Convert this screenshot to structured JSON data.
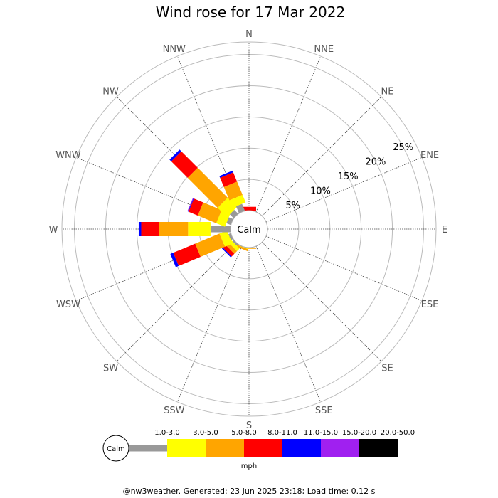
{
  "page": {
    "title": "Wind rose for 17 Mar 2022",
    "footer": "@nw3weather. Generated: 23 Jun 2025 23:18; Load time: 0.12 s"
  },
  "chart_data": {
    "type": "windrose",
    "title": "Wind rose for 17 Mar 2022",
    "calm_label": "Calm",
    "unit": "mph",
    "directions": [
      "N",
      "NNE",
      "NE",
      "ENE",
      "E",
      "ESE",
      "SE",
      "SSE",
      "S",
      "SSW",
      "SW",
      "WSW",
      "W",
      "WNW",
      "NW",
      "NNW"
    ],
    "radial_ticks": [
      {
        "value": 5,
        "label": "5%"
      },
      {
        "value": 10,
        "label": "10%"
      },
      {
        "value": 15,
        "label": "15%"
      },
      {
        "value": 20,
        "label": "20%"
      },
      {
        "value": 25,
        "label": "25%"
      }
    ],
    "rmax": 27,
    "speed_bins": [
      {
        "label": "1.0-3.0",
        "color": "#999999"
      },
      {
        "label": "3.0-5.0",
        "color": "#ffff00"
      },
      {
        "label": "5.0-8.0",
        "color": "#ffa500"
      },
      {
        "label": "8.0-11.0",
        "color": "#ff0000"
      },
      {
        "label": "11.0-15.0",
        "color": "#0000ff"
      },
      {
        "label": "15.0-20.0",
        "color": "#a020f0"
      },
      {
        "label": "20.0-50.0",
        "color": "#000000"
      }
    ],
    "series": [
      {
        "direction": "N",
        "values": [
          0,
          0,
          0,
          0.6,
          0,
          0,
          0
        ]
      },
      {
        "direction": "S",
        "values": [
          0,
          0,
          0.2,
          0,
          0,
          0,
          0
        ]
      },
      {
        "direction": "SSW",
        "values": [
          0,
          0.1,
          0.3,
          0,
          0,
          0,
          0
        ]
      },
      {
        "direction": "SW",
        "values": [
          0.3,
          0.6,
          0.6,
          0.6,
          0.2,
          0,
          0
        ]
      },
      {
        "direction": "WSW",
        "values": [
          0.4,
          1.3,
          4.2,
          3.8,
          0.5,
          0,
          0
        ]
      },
      {
        "direction": "W",
        "values": [
          3.2,
          3.6,
          4.6,
          2.9,
          0.4,
          0,
          0
        ]
      },
      {
        "direction": "WNW",
        "values": [
          0.75,
          1.5,
          3.2,
          1.6,
          0.1,
          0.1,
          0
        ]
      },
      {
        "direction": "NW",
        "values": [
          0.9,
          2.1,
          6.8,
          3.7,
          0.4,
          0,
          0
        ]
      },
      {
        "direction": "NNW",
        "values": [
          1.2,
          1.3,
          2.3,
          1.6,
          0.3,
          0,
          0
        ]
      }
    ]
  }
}
